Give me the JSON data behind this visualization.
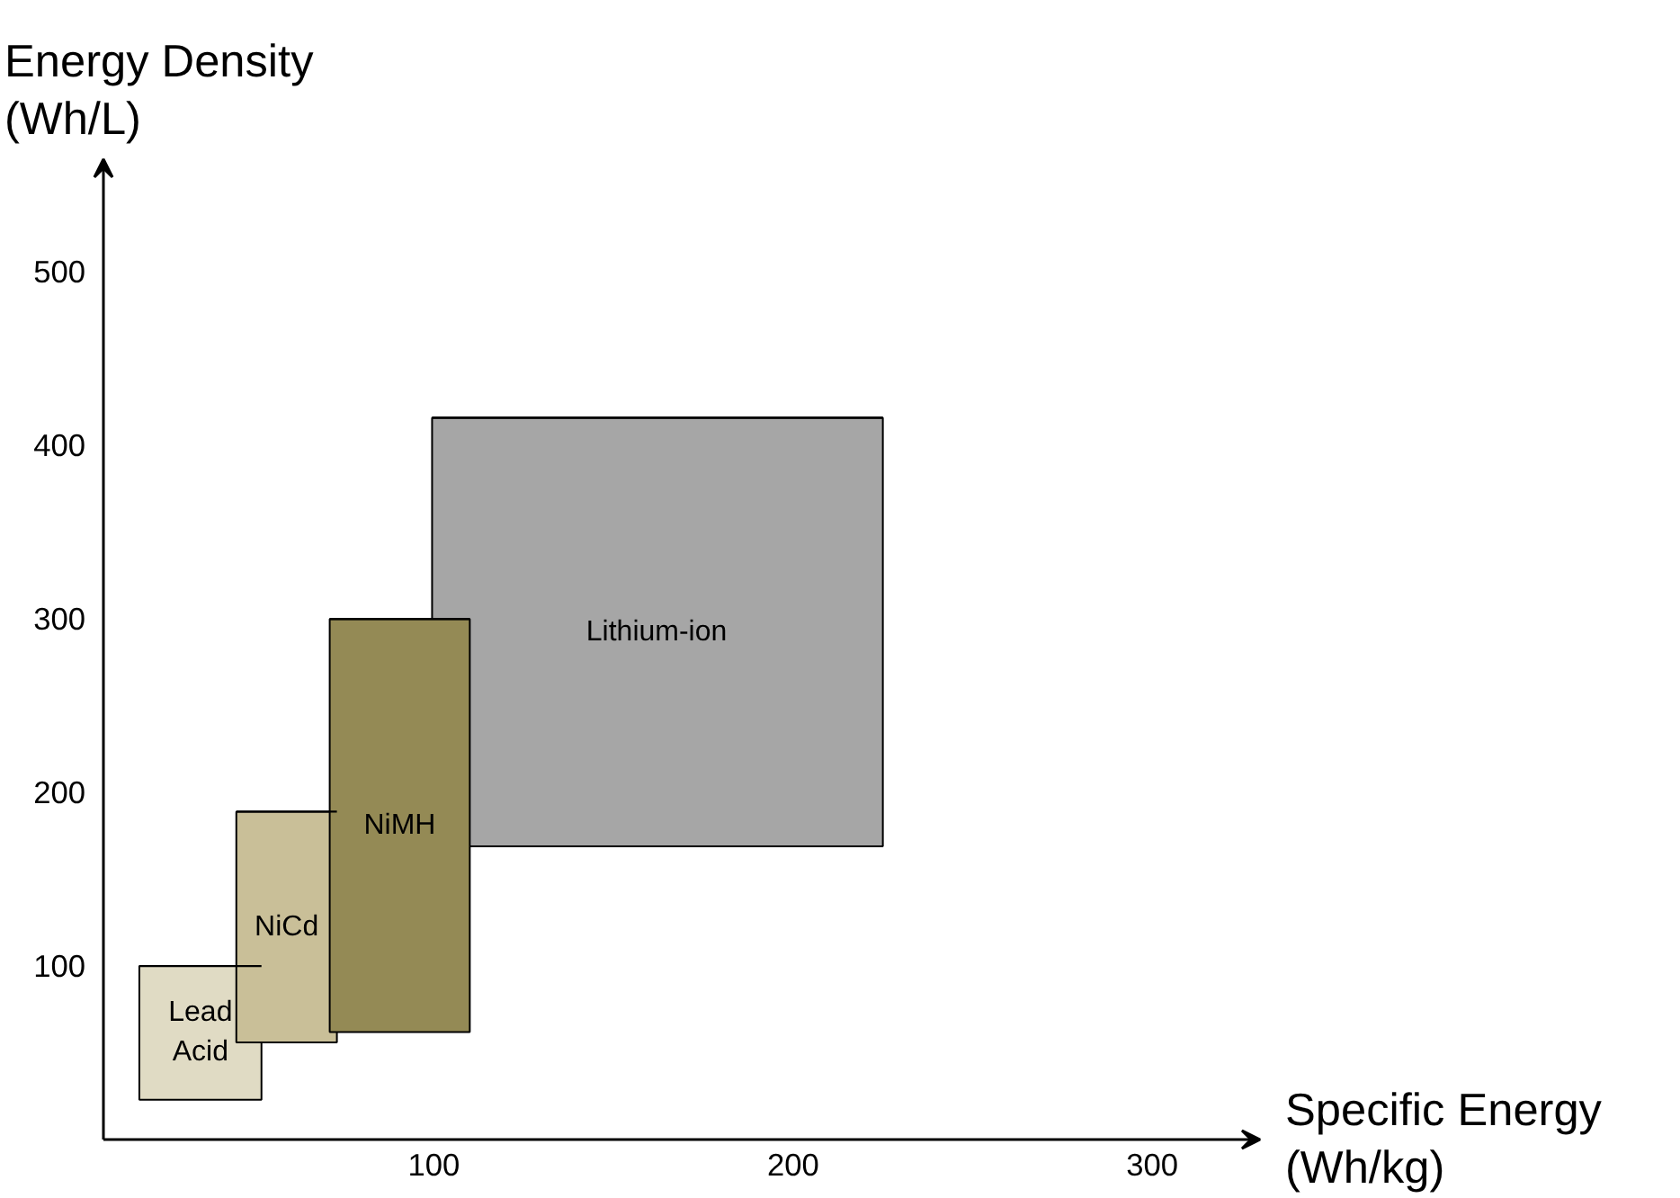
{
  "chart_data": {
    "type": "bar",
    "xlabel": "Specific Energy\n(Wh/kg)",
    "ylabel": "Energy Density\n(Wh/L)",
    "xlim": [
      8,
      330
    ],
    "ylim": [
      0,
      565
    ],
    "xticks": [
      100,
      200,
      300
    ],
    "yticks": [
      100,
      200,
      300,
      400,
      500
    ],
    "grid": false,
    "series": [
      {
        "name": "Lithium-ion",
        "color": "#a6a6a6",
        "x": [
          162
        ],
        "base": [
          169
        ],
        "values": [
          247
        ],
        "xerrors": [
          [
            99.5,
            225
          ]
        ]
      },
      {
        "name": "Lead Acid",
        "color": "#e0dbc4",
        "x": [
          35
        ],
        "base": [
          23
        ],
        "values": [
          77
        ],
        "xerrors": [
          [
            18,
            52
          ]
        ]
      },
      {
        "name": "NiCd",
        "color": "#c9bf98",
        "x": [
          59
        ],
        "base": [
          56
        ],
        "values": [
          133
        ],
        "xerrors": [
          [
            45,
            73
          ]
        ]
      },
      {
        "name": "NiMH",
        "color": "#948a55",
        "x": [
          90.5
        ],
        "base": [
          62
        ],
        "values": [
          238
        ],
        "xerrors": [
          [
            71,
            110
          ]
        ]
      }
    ]
  }
}
